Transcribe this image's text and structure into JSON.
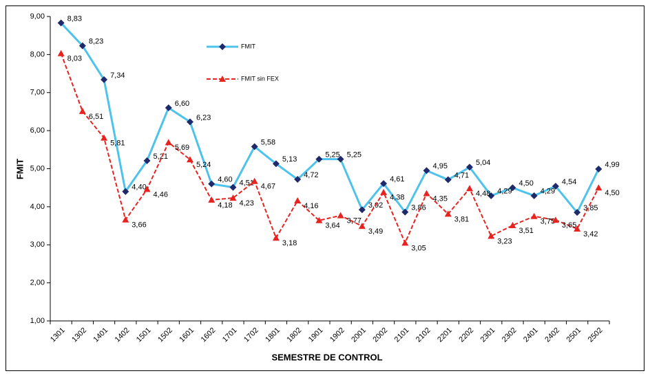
{
  "chart_data": {
    "type": "line",
    "x_label": "SEMESTRE DE CONTROL",
    "y_label": "FMIT",
    "categories": [
      "1301",
      "1302",
      "1401",
      "1402",
      "1501",
      "1502",
      "1601",
      "1602",
      "1701",
      "1702",
      "1801",
      "1802",
      "1901",
      "1902",
      "2001",
      "2002",
      "2101",
      "2102",
      "2201",
      "2202",
      "2301",
      "2302",
      "2401",
      "2402",
      "2501",
      "2502"
    ],
    "series": [
      {
        "name": "FMIT",
        "color": "#4dc3ec",
        "marker_color": "#1f2a6b",
        "marker": "diamond",
        "dash": false,
        "values": [
          8.83,
          8.23,
          7.34,
          4.4,
          5.21,
          6.6,
          6.23,
          4.6,
          4.51,
          5.58,
          5.13,
          4.72,
          5.25,
          5.25,
          3.92,
          4.61,
          3.86,
          4.95,
          4.71,
          5.04,
          4.29,
          4.5,
          4.29,
          4.54,
          3.85,
          4.99
        ],
        "value_labels": [
          "8,83",
          "8,23",
          "7,34",
          "4,40",
          "5,21",
          "6,60",
          "6,23",
          "4,60",
          "4,51",
          "5,58",
          "5,13",
          "4,72",
          "5,25",
          "5,25",
          "3,92",
          "4,61",
          "3,86",
          "4,95",
          "4,71",
          "5,04",
          "4,29",
          "4,50",
          "4,29",
          "4,54",
          "3,85",
          "4,99"
        ]
      },
      {
        "name": "FMIT sin FEX",
        "color": "#e8231f",
        "marker_color": "#e8231f",
        "marker": "triangle",
        "dash": true,
        "values": [
          8.03,
          6.51,
          5.81,
          3.66,
          4.46,
          5.69,
          5.24,
          4.18,
          4.23,
          4.67,
          3.18,
          4.16,
          3.64,
          3.77,
          3.49,
          4.38,
          3.05,
          4.35,
          3.81,
          4.48,
          3.23,
          3.51,
          3.75,
          3.65,
          3.42,
          4.5
        ],
        "value_labels": [
          "8,03",
          "6,51",
          "5,81",
          "3,66",
          "4,46",
          "5,69",
          "5,24",
          "4,18",
          "4,23",
          "4,67",
          "3,18",
          "4,16",
          "3,64",
          "3,77",
          "3,49",
          "4,38",
          "3,05",
          "4,35",
          "3,81",
          "4,48",
          "3,23",
          "3,51",
          "3,75",
          "3,65",
          "3,42",
          "4,50"
        ]
      }
    ],
    "ylim": [
      1,
      9
    ],
    "yticks": [
      {
        "value": 1,
        "label": "1,00"
      },
      {
        "value": 2,
        "label": "2,00"
      },
      {
        "value": 3,
        "label": "3,00"
      },
      {
        "value": 4,
        "label": "4,00"
      },
      {
        "value": 5,
        "label": "5,00"
      },
      {
        "value": 6,
        "label": "6,00"
      },
      {
        "value": 7,
        "label": "7,00"
      },
      {
        "value": 8,
        "label": "8,00"
      },
      {
        "value": 9,
        "label": "9,00"
      }
    ],
    "grid": false,
    "legend": "upper-center"
  }
}
